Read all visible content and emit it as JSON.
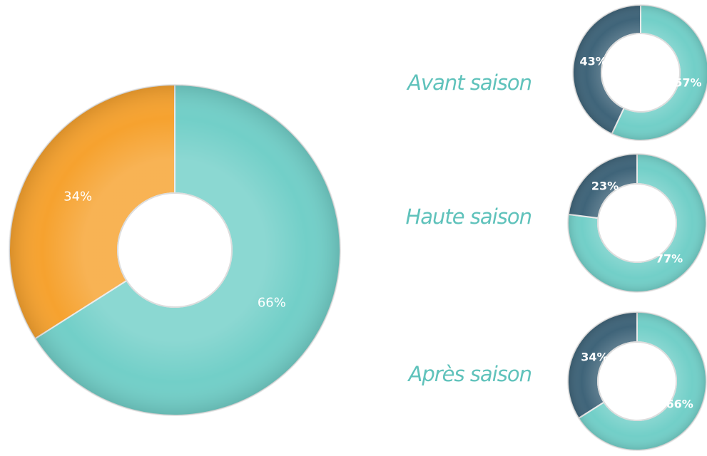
{
  "chart_data": [
    {
      "type": "donut",
      "values": [
        66,
        34
      ],
      "value_labels": [
        "66%",
        "34%"
      ],
      "colors": [
        "#72cfc8",
        "#f6a22f"
      ]
    },
    {
      "type": "donut",
      "title": "Avant saison",
      "values": [
        57,
        43
      ],
      "value_labels": [
        "57%",
        "43%"
      ],
      "colors": [
        "#72cfc8",
        "#3f6479"
      ]
    },
    {
      "type": "donut",
      "title": "Haute saison",
      "values": [
        77,
        23
      ],
      "value_labels": [
        "77%",
        "23%"
      ],
      "colors": [
        "#72cfc8",
        "#3f6479"
      ]
    },
    {
      "type": "donut",
      "title": "Après saison",
      "values": [
        66,
        34
      ],
      "value_labels": [
        "66%",
        "34%"
      ],
      "colors": [
        "#72cfc8",
        "#3f6479"
      ]
    }
  ]
}
